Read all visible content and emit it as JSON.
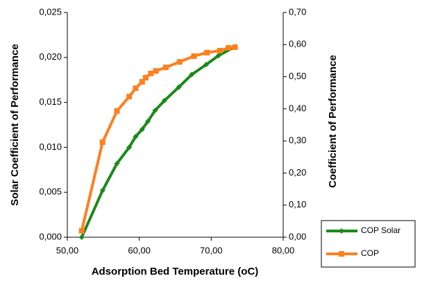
{
  "chart_data": {
    "type": "line",
    "x_label": "Adsorption Bed Temperature (oC)",
    "y_label": "Solar Coefficient of Performance",
    "y2_label": "Coefficient of Performance",
    "xlim": [
      50,
      80
    ],
    "xticks": [
      {
        "value": 50,
        "label": "50,00"
      },
      {
        "value": 60,
        "label": "60,00"
      },
      {
        "value": 70,
        "label": "70,00"
      },
      {
        "value": 80,
        "label": "80,00"
      }
    ],
    "ylim": [
      0,
      0.025
    ],
    "yticks": [
      {
        "value": 0,
        "label": "0,000"
      },
      {
        "value": 0.005,
        "label": "0,005"
      },
      {
        "value": 0.01,
        "label": "0,010"
      },
      {
        "value": 0.015,
        "label": "0,015"
      },
      {
        "value": 0.02,
        "label": "0,020"
      },
      {
        "value": 0.025,
        "label": "0,025"
      }
    ],
    "y2lim": [
      0,
      0.7
    ],
    "y2ticks": [
      {
        "value": 0,
        "label": "0,00"
      },
      {
        "value": 0.1,
        "label": "0,10"
      },
      {
        "value": 0.2,
        "label": "0,20"
      },
      {
        "value": 0.3,
        "label": "0,30"
      },
      {
        "value": 0.4,
        "label": "0,40"
      },
      {
        "value": 0.5,
        "label": "0,50"
      },
      {
        "value": 0.6,
        "label": "0,60"
      },
      {
        "value": 0.7,
        "label": "0,70"
      }
    ],
    "series": [
      {
        "name": "COP Solar",
        "color": "#1a8a1a",
        "marker": "diamond",
        "x": [
          52.0,
          54.9,
          56.9,
          58.6,
          59.5,
          60.4,
          61.2,
          62.2,
          63.5,
          65.5,
          67.3,
          69.3,
          71.0,
          73.1
        ],
        "values": [
          0,
          0.0052,
          0.0082,
          0.01,
          0.0112,
          0.012,
          0.0129,
          0.0141,
          0.0152,
          0.0167,
          0.0181,
          0.0192,
          0.0202,
          0.0211
        ]
      },
      {
        "name": "COP",
        "color": "#ff7f1f",
        "marker": "square",
        "axis": "y2",
        "x": [
          52.0,
          54.9,
          56.9,
          58.6,
          59.5,
          60.4,
          60.9,
          61.6,
          62.3,
          63.7,
          65.6,
          67.6,
          69.4,
          71.2,
          72.4,
          73.3
        ],
        "values": [
          0.02,
          0.296,
          0.393,
          0.438,
          0.464,
          0.484,
          0.497,
          0.51,
          0.518,
          0.529,
          0.546,
          0.564,
          0.575,
          0.581,
          0.59,
          0.592
        ]
      }
    ]
  }
}
